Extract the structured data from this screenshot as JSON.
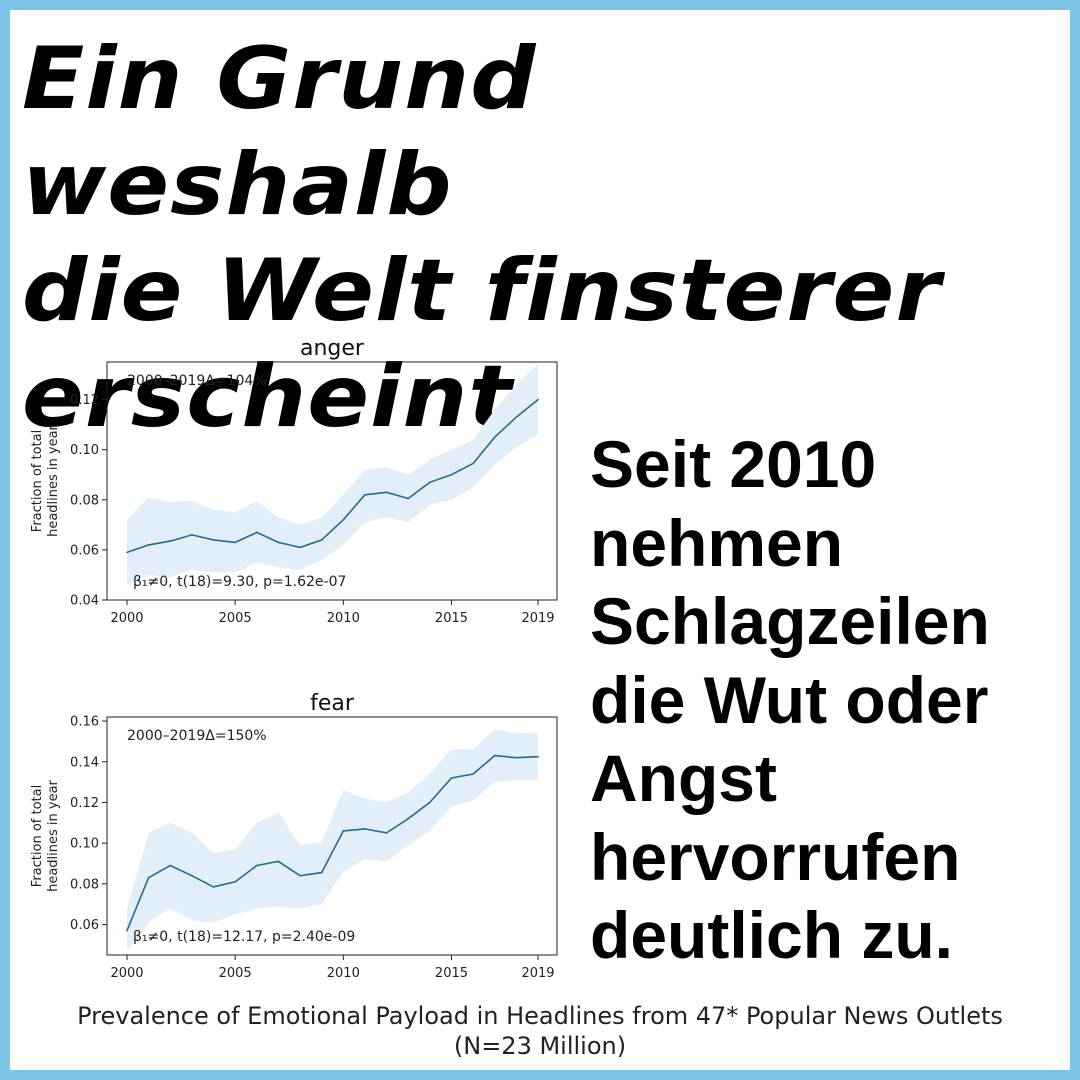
{
  "headline": {
    "lines": [
      "Ein Grund weshalb",
      "die Welt finsterer",
      "erscheint"
    ]
  },
  "side_text": {
    "lines": [
      "Seit 2010",
      "nehmen",
      "Schlagzeilen",
      "die Wut oder",
      "Angst",
      "hervorrufen",
      "deutlich zu."
    ]
  },
  "caption": {
    "line1": "Prevalence of Emotional Payload in Headlines from 47* Popular News Outlets",
    "line2": "(N=23 Million)"
  },
  "colors": {
    "border": "#7cc4e8",
    "line": "#2a6a93",
    "band": "#e2eef8"
  },
  "chart_data": [
    {
      "type": "line",
      "title": "anger",
      "ylabel_lines": [
        "Fraction of total",
        "headlines in year"
      ],
      "xlim": [
        2000,
        2019
      ],
      "ylim": [
        0.04,
        0.135
      ],
      "xticks": [
        2000,
        2005,
        2010,
        2015,
        2019
      ],
      "yticks": [
        "0.04",
        "0.06",
        "0.08",
        "0.10",
        "0.12"
      ],
      "annotation_top": "2000–2019Δ=104%",
      "annotation_bottom": "β₁≠0, t(18)=9.30, p=1.62e-07",
      "x": [
        2000,
        2001,
        2002,
        2003,
        2004,
        2005,
        2006,
        2007,
        2008,
        2009,
        2010,
        2011,
        2012,
        2013,
        2014,
        2015,
        2016,
        2017,
        2018,
        2019
      ],
      "y": [
        0.059,
        0.062,
        0.0635,
        0.066,
        0.064,
        0.063,
        0.067,
        0.063,
        0.061,
        0.064,
        0.072,
        0.082,
        0.083,
        0.0805,
        0.087,
        0.09,
        0.0945,
        0.105,
        0.113,
        0.12
      ],
      "lower": [
        0.046,
        0.05,
        0.049,
        0.052,
        0.051,
        0.051,
        0.055,
        0.053,
        0.052,
        0.056,
        0.062,
        0.071,
        0.073,
        0.071,
        0.078,
        0.08,
        0.085,
        0.094,
        0.101,
        0.106
      ],
      "upper": [
        0.072,
        0.081,
        0.079,
        0.0795,
        0.076,
        0.075,
        0.0795,
        0.073,
        0.07,
        0.073,
        0.082,
        0.092,
        0.093,
        0.09,
        0.096,
        0.1,
        0.104,
        0.116,
        0.126,
        0.134
      ],
      "grid": false
    },
    {
      "type": "line",
      "title": "fear",
      "ylabel_lines": [
        "Fraction of total",
        "headlines in year"
      ],
      "xlim": [
        2000,
        2019
      ],
      "ylim": [
        0.045,
        0.162
      ],
      "xticks": [
        2000,
        2005,
        2010,
        2015,
        2019
      ],
      "yticks": [
        "0.06",
        "0.08",
        "0.10",
        "0.12",
        "0.14",
        "0.16"
      ],
      "annotation_top": "2000–2019Δ=150%",
      "annotation_bottom": "β₁≠0, t(18)=12.17, p=2.40e-09",
      "x": [
        2000,
        2001,
        2002,
        2003,
        2004,
        2005,
        2006,
        2007,
        2008,
        2009,
        2010,
        2011,
        2012,
        2013,
        2014,
        2015,
        2016,
        2017,
        2018,
        2019
      ],
      "y": [
        0.057,
        0.083,
        0.089,
        0.084,
        0.0785,
        0.081,
        0.089,
        0.091,
        0.084,
        0.0855,
        0.106,
        0.107,
        0.105,
        0.112,
        0.12,
        0.132,
        0.134,
        0.143,
        0.142,
        0.1425
      ],
      "lower": [
        0.047,
        0.061,
        0.068,
        0.062,
        0.061,
        0.065,
        0.068,
        0.069,
        0.068,
        0.07,
        0.086,
        0.092,
        0.091,
        0.099,
        0.106,
        0.118,
        0.121,
        0.13,
        0.131,
        0.131
      ],
      "upper": [
        0.068,
        0.105,
        0.11,
        0.105,
        0.095,
        0.097,
        0.11,
        0.115,
        0.099,
        0.1005,
        0.126,
        0.122,
        0.12,
        0.125,
        0.134,
        0.146,
        0.146,
        0.156,
        0.154,
        0.154
      ],
      "grid": false
    }
  ]
}
